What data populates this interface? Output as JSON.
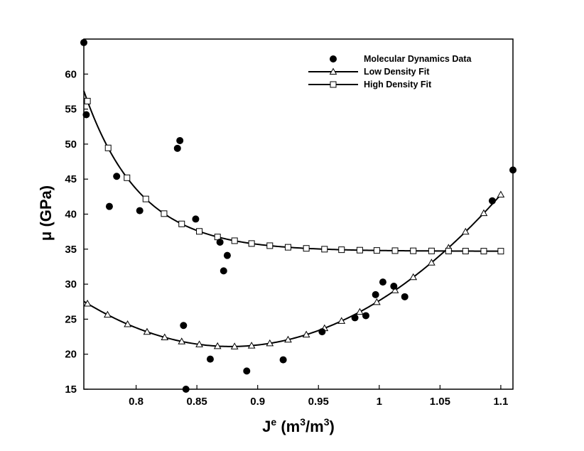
{
  "chart_data": {
    "type": "scatter",
    "title": "",
    "xlabel": {
      "main": "J",
      "sup": "e",
      "units_pre": " (m",
      "units_sup1": "3",
      "units_mid": "/m",
      "units_sup2": "3",
      "units_post": ")"
    },
    "ylabel": "μ (GPa)",
    "xlim": [
      0.757,
      1.11
    ],
    "ylim": [
      15,
      65
    ],
    "xticks": [
      0.8,
      0.85,
      0.9,
      0.95,
      1,
      1.05,
      1.1
    ],
    "xtick_labels": [
      "0.8",
      "0.85",
      "0.9",
      "0.95",
      "1",
      "1.05",
      "1.1"
    ],
    "yticks": [
      15,
      20,
      25,
      30,
      35,
      40,
      45,
      50,
      55,
      60
    ],
    "ytick_labels": [
      "15",
      "20",
      "25",
      "30",
      "35",
      "40",
      "45",
      "50",
      "55",
      "60"
    ],
    "legend_position": "top-right",
    "series": [
      {
        "name": "Molecular Dynamics Data",
        "kind": "markers",
        "marker": "filled-circle",
        "points": [
          [
            0.757,
            64.5
          ],
          [
            0.759,
            54.2
          ],
          [
            0.778,
            41.1
          ],
          [
            0.784,
            45.4
          ],
          [
            0.803,
            40.5
          ],
          [
            0.834,
            49.4
          ],
          [
            0.836,
            50.5
          ],
          [
            0.839,
            24.1
          ],
          [
            0.841,
            15.0
          ],
          [
            0.849,
            39.3
          ],
          [
            0.861,
            19.3
          ],
          [
            0.869,
            36.0
          ],
          [
            0.872,
            31.9
          ],
          [
            0.875,
            34.1
          ],
          [
            0.891,
            17.6
          ],
          [
            0.921,
            19.2
          ],
          [
            0.953,
            23.2
          ],
          [
            0.98,
            25.2
          ],
          [
            0.989,
            25.5
          ],
          [
            0.997,
            28.5
          ],
          [
            1.003,
            30.3
          ],
          [
            1.012,
            29.7
          ],
          [
            1.021,
            28.2
          ],
          [
            1.093,
            41.9
          ],
          [
            1.11,
            46.3
          ]
        ]
      },
      {
        "name": "Low Density Fit",
        "kind": "line-markers",
        "marker": "open-triangle",
        "model": {
          "form": "a*(x - x0)^2 + c",
          "a": 440,
          "x0": 0.878,
          "c": 21.1
        },
        "marker_x": [
          0.76,
          0.7765,
          0.793,
          0.809,
          0.8235,
          0.8375,
          0.852,
          0.867,
          0.881,
          0.895,
          0.91,
          0.925,
          0.94,
          0.955,
          0.969,
          0.984,
          0.998,
          1.013,
          1.028,
          1.043,
          1.057,
          1.071,
          1.086,
          1.1
        ]
      },
      {
        "name": "High Density Fit",
        "kind": "line-markers",
        "marker": "open-square",
        "model": {
          "form": "c + A*exp(-(x - 0.757)/t)",
          "c": 34.7,
          "A": 22.9,
          "t": 0.0455
        },
        "marker_x": [
          0.76,
          0.777,
          0.7925,
          0.808,
          0.823,
          0.8375,
          0.852,
          0.867,
          0.881,
          0.895,
          0.91,
          0.925,
          0.94,
          0.955,
          0.969,
          0.984,
          0.998,
          1.013,
          1.028,
          1.043,
          1.057,
          1.071,
          1.086,
          1.1
        ]
      }
    ]
  },
  "legend": [
    {
      "label": "Molecular Dynamics Data",
      "marker": "filled-circle"
    },
    {
      "label": "Low Density Fit",
      "marker": "open-triangle"
    },
    {
      "label": "High Density Fit",
      "marker": "open-square"
    }
  ]
}
